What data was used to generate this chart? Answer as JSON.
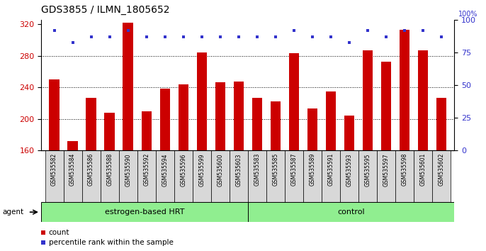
{
  "title": "GDS3855 / ILMN_1805652",
  "categories": [
    "GSM535582",
    "GSM535584",
    "GSM535586",
    "GSM535588",
    "GSM535590",
    "GSM535592",
    "GSM535594",
    "GSM535596",
    "GSM535599",
    "GSM535600",
    "GSM535603",
    "GSM535583",
    "GSM535585",
    "GSM535587",
    "GSM535589",
    "GSM535591",
    "GSM535593",
    "GSM535595",
    "GSM535597",
    "GSM535598",
    "GSM535601",
    "GSM535602"
  ],
  "bar_values": [
    250,
    172,
    227,
    208,
    322,
    210,
    238,
    244,
    284,
    246,
    247,
    227,
    222,
    283,
    213,
    235,
    204,
    287,
    272,
    313,
    287,
    227
  ],
  "percentile_values": [
    92,
    83,
    87,
    87,
    92,
    87,
    87,
    87,
    87,
    87,
    87,
    87,
    87,
    92,
    87,
    87,
    83,
    92,
    87,
    92,
    92,
    87
  ],
  "bar_color": "#cc0000",
  "percentile_color": "#3333cc",
  "ylim_left": [
    160,
    325
  ],
  "ylim_right": [
    0,
    100
  ],
  "yticks_left": [
    160,
    200,
    240,
    280,
    320
  ],
  "yticks_right": [
    0,
    25,
    50,
    75,
    100
  ],
  "grid_levels": [
    200,
    240,
    280
  ],
  "group1_label": "estrogen-based HRT",
  "group1_count": 11,
  "group2_label": "control",
  "group2_count": 11,
  "group_color": "#90EE90",
  "agent_label": "agent",
  "legend_count_label": "count",
  "legend_percentile_label": "percentile rank within the sample",
  "background_color": "#ffffff",
  "title_fontsize": 10,
  "axis_label_fontsize": 8,
  "bar_label_fontsize": 5.5,
  "group_fontsize": 8,
  "legend_fontsize": 7.5
}
